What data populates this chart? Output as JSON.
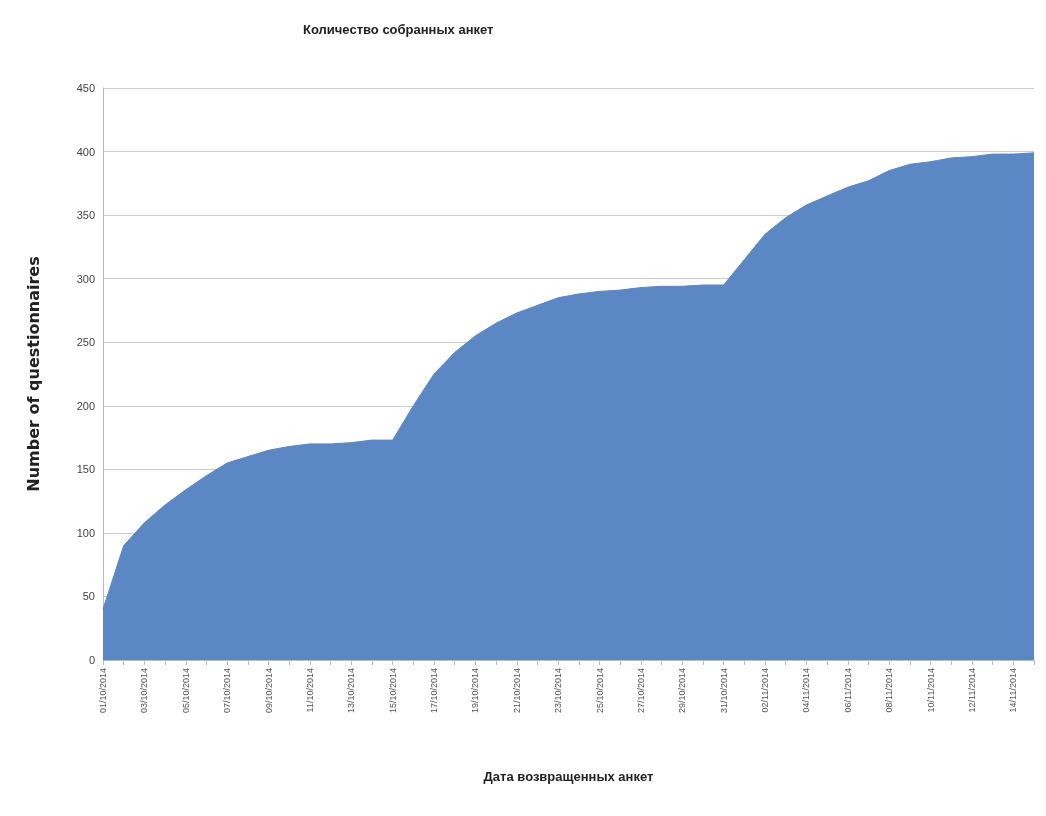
{
  "chart_data": {
    "type": "area",
    "title": "Количество собранных анкет",
    "xlabel": "Дата возвращенных анкет",
    "ylabel": "Number of questionnaires",
    "categories": [
      "01/10/2014",
      null,
      "03/10/2014",
      null,
      "05/10/2014",
      null,
      "07/10/2014",
      null,
      "09/10/2014",
      null,
      "11/10/2014",
      null,
      "13/10/2014",
      null,
      "15/10/2014",
      null,
      "17/10/2014",
      null,
      "19/10/2014",
      null,
      "21/10/2014",
      null,
      "23/10/2014",
      null,
      "25/10/2014",
      null,
      "27/10/2014",
      null,
      "29/10/2014",
      null,
      "31/10/2014",
      null,
      "02/11/2014",
      null,
      "04/11/2014",
      null,
      "06/11/2014",
      null,
      "08/11/2014",
      null,
      "10/11/2014",
      null,
      "12/11/2014",
      null,
      "14/11/2014",
      null
    ],
    "series": [
      {
        "color": "#5b87c5",
        "values": [
          40,
          90,
          108,
          122,
          134,
          145,
          155,
          160,
          165,
          168,
          170,
          170,
          171,
          173,
          173,
          200,
          225,
          242,
          255,
          265,
          273,
          279,
          285,
          288,
          290,
          291,
          293,
          294,
          294,
          295,
          295,
          315,
          335,
          348,
          358,
          365,
          372,
          377,
          385,
          390,
          392,
          395,
          396,
          398,
          398,
          399
        ]
      }
    ],
    "ylim": [
      0,
      450
    ],
    "yticks": [
      0,
      50,
      100,
      150,
      200,
      250,
      300,
      350,
      400,
      450
    ],
    "grid": "y"
  }
}
